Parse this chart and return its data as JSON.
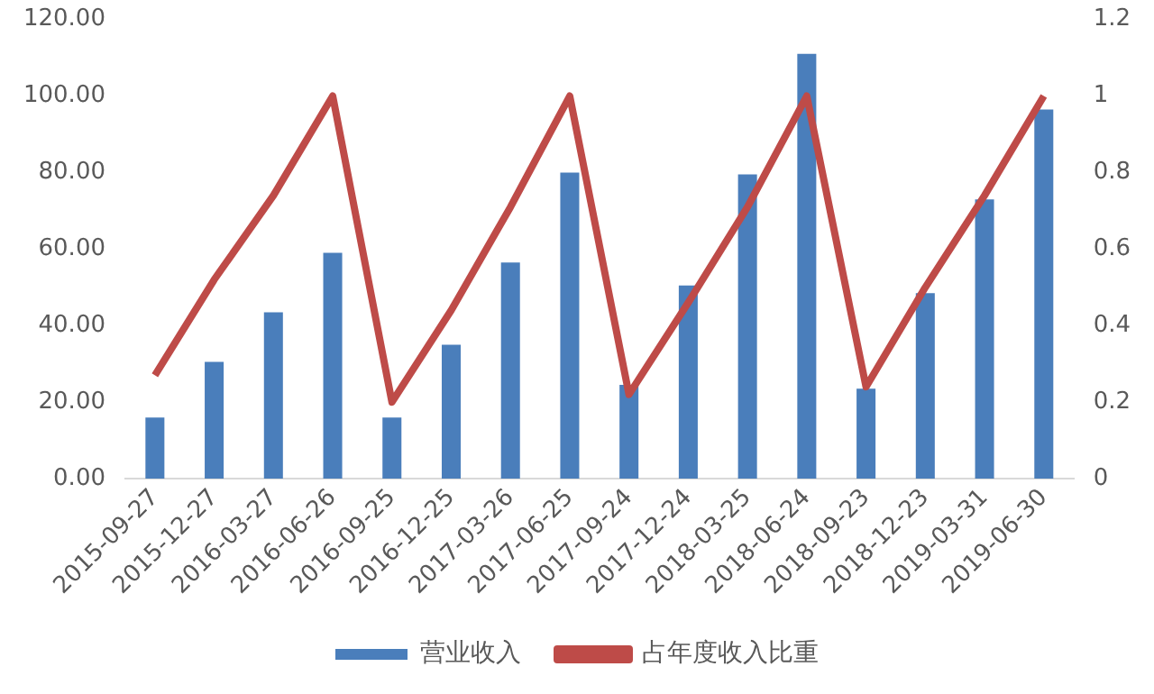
{
  "chart_data": {
    "type": "bar",
    "categories": [
      "2015-09-27",
      "2015-12-27",
      "2016-03-27",
      "2016-06-26",
      "2016-09-25",
      "2016-12-25",
      "2017-03-26",
      "2017-06-25",
      "2017-09-24",
      "2017-12-24",
      "2018-03-25",
      "2018-06-24",
      "2018-09-23",
      "2018-12-23",
      "2019-03-31",
      "2019-06-30"
    ],
    "series": [
      {
        "name": "营业收入",
        "color": "#4a7ebb",
        "values": [
          16,
          30.5,
          43.5,
          59,
          16,
          35,
          56.5,
          80,
          24.5,
          50.5,
          79.5,
          111,
          23.5,
          48.5,
          73,
          96.5
        ]
      },
      {
        "name": "占年度收入比重",
        "type": "line",
        "axis": "y2",
        "color": "#be4b48",
        "values": [
          0.27,
          0.52,
          0.74,
          1.0,
          0.2,
          0.44,
          0.71,
          1.0,
          0.22,
          0.46,
          0.71,
          1.0,
          0.24,
          0.5,
          0.74,
          1.0
        ]
      }
    ],
    "ylim": [
      0,
      120
    ],
    "yticks": [
      {
        "value": 0,
        "label": "0.00"
      },
      {
        "value": 20,
        "label": "20.00"
      },
      {
        "value": 40,
        "label": "40.00"
      },
      {
        "value": 60,
        "label": "60.00"
      },
      {
        "value": 80,
        "label": "80.00"
      },
      {
        "value": 100,
        "label": "100.00"
      },
      {
        "value": 120,
        "label": "120.00"
      }
    ],
    "y2lim": [
      0,
      1.2
    ],
    "y2ticks": [
      0,
      0.2,
      0.4,
      0.6,
      0.8,
      1,
      1.2
    ],
    "grid": false,
    "legend": "bottom",
    "marker": "none"
  }
}
